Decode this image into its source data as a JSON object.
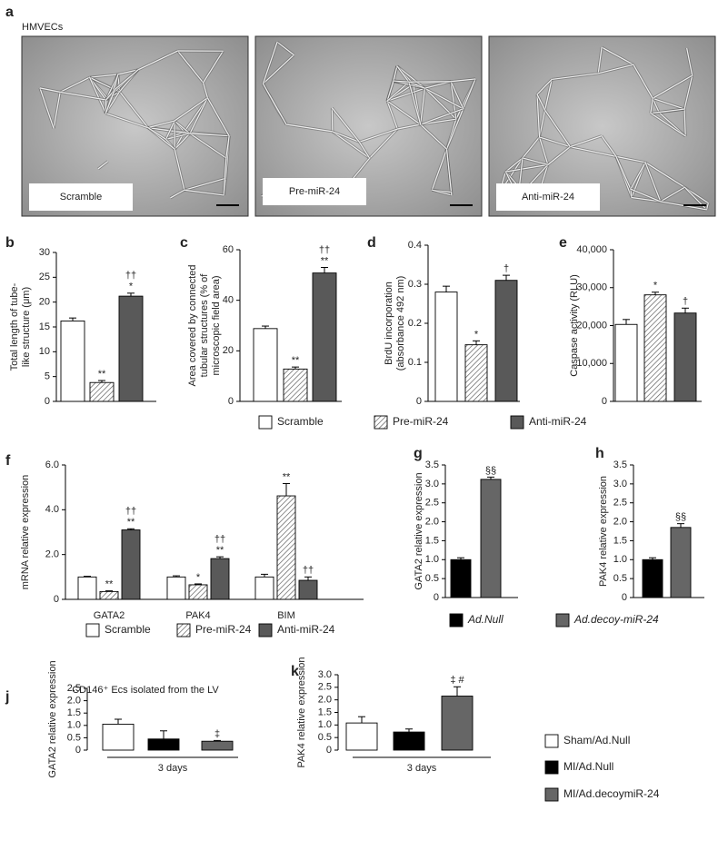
{
  "panel_a": {
    "label": "a",
    "title": "HMVECs",
    "images": [
      {
        "caption": "Scramble"
      },
      {
        "caption": "Pre-miR-24"
      },
      {
        "caption": "Anti-miR-24"
      }
    ]
  },
  "chart_data": [
    {
      "label": "b",
      "type": "bar",
      "ylabel": [
        "Total length of tube-",
        "like structure (μm)"
      ],
      "ylim": [
        0,
        30
      ],
      "yticks": [
        0,
        5,
        10,
        15,
        20,
        25,
        30
      ],
      "values": [
        16.2,
        3.8,
        21.2
      ],
      "errors": [
        0.6,
        0.4,
        0.6
      ],
      "annotations": [
        null,
        [
          "**"
        ],
        [
          "††",
          "*"
        ]
      ],
      "colors": [
        "#ffffff",
        "#ffffff",
        "#595959"
      ],
      "hatch": [
        false,
        true,
        false
      ]
    },
    {
      "label": "c",
      "type": "bar",
      "ylabel": [
        "Area covered by connected",
        "tubular structures (% of",
        "microscopic field area)"
      ],
      "ylim": [
        0,
        60
      ],
      "yticks": [
        0,
        20,
        40,
        60
      ],
      "values": [
        28.8,
        12.8,
        50.8
      ],
      "errors": [
        1.0,
        0.8,
        2.2
      ],
      "annotations": [
        null,
        [
          "**"
        ],
        [
          "††",
          "**"
        ]
      ],
      "colors": [
        "#ffffff",
        "#ffffff",
        "#595959"
      ],
      "hatch": [
        false,
        true,
        false
      ]
    },
    {
      "label": "d",
      "type": "bar",
      "ylabel": [
        "BrdU incorporation",
        "(absorbance 492 nm)"
      ],
      "ylim": [
        0,
        0.4
      ],
      "yticks": [
        0,
        0.1,
        0.2,
        0.3,
        0.4
      ],
      "values": [
        0.28,
        0.145,
        0.31
      ],
      "errors": [
        0.015,
        0.01,
        0.013
      ],
      "annotations": [
        null,
        [
          "*"
        ],
        [
          "†"
        ]
      ],
      "colors": [
        "#ffffff",
        "#ffffff",
        "#595959"
      ],
      "hatch": [
        false,
        true,
        false
      ]
    },
    {
      "label": "e",
      "type": "bar",
      "ylabel": "Caspase activity (RLU)",
      "ylim": [
        0,
        40000
      ],
      "yticks": [
        0,
        {
          "value": 10000,
          "label": "10,000"
        },
        {
          "value": 20000,
          "label": "20,000"
        },
        {
          "value": 30000,
          "label": "30,000"
        },
        {
          "value": 40000,
          "label": "40,000"
        }
      ],
      "values": [
        20300,
        28100,
        23300
      ],
      "errors": [
        1300,
        700,
        1300
      ],
      "annotations": [
        null,
        [
          "*"
        ],
        [
          "†"
        ]
      ],
      "colors": [
        "#ffffff",
        "#ffffff",
        "#595959"
      ],
      "hatch": [
        false,
        true,
        false
      ]
    },
    {
      "label": "f",
      "type": "grouped_bar",
      "ylabel": "mRNA relative expression",
      "ylim": [
        0,
        6
      ],
      "yticks": [
        0,
        {
          "value": 2,
          "label": "2.0"
        },
        {
          "value": 4,
          "label": "4.0"
        },
        {
          "value": 6,
          "label": "6.0"
        }
      ],
      "categories": [
        "GATA2",
        "PAK4",
        "BIM"
      ],
      "series": [
        {
          "name": "Scramble",
          "color": "#ffffff",
          "values": [
            1.0,
            1.0,
            1.0
          ],
          "errors": [
            0.03,
            0.05,
            0.12
          ]
        },
        {
          "name": "Pre-miR-24",
          "color": "#ffffff",
          "hatch": true,
          "values": [
            0.35,
            0.65,
            4.62
          ],
          "errors": [
            0.03,
            0.04,
            0.55
          ],
          "annotations": [
            [
              "**"
            ],
            [
              "*"
            ],
            [
              "**"
            ]
          ]
        },
        {
          "name": "Anti-miR-24",
          "color": "#595959",
          "values": [
            3.1,
            1.82,
            0.85
          ],
          "errors": [
            0.05,
            0.08,
            0.15
          ],
          "annotations": [
            [
              "††",
              "**"
            ],
            [
              "††",
              "**"
            ],
            [
              "††"
            ]
          ]
        }
      ]
    },
    {
      "label": "g",
      "type": "bar",
      "ylabel": "GATA2 relative expression",
      "ylim": [
        0,
        3.5
      ],
      "yticks": [
        0,
        0.5,
        {
          "value": 1,
          "label": "1.0"
        },
        1.5,
        {
          "value": 2,
          "label": "2.0"
        },
        2.5,
        {
          "value": 3,
          "label": "3.0"
        },
        3.5
      ],
      "values": [
        1.0,
        3.12
      ],
      "errors": [
        0.05,
        0.06
      ],
      "annotations": [
        null,
        [
          "§§"
        ]
      ],
      "colors": [
        "#000000",
        "#666666"
      ]
    },
    {
      "label": "h",
      "type": "bar",
      "ylabel": "PAK4 relative expression",
      "ylim": [
        0,
        3.5
      ],
      "yticks": [
        0,
        0.5,
        {
          "value": 1,
          "label": "1.0"
        },
        1.5,
        {
          "value": 2,
          "label": "2.0"
        },
        2.5,
        {
          "value": 3,
          "label": "3.0"
        },
        3.5
      ],
      "values": [
        1.0,
        1.85
      ],
      "errors": [
        0.05,
        0.1
      ],
      "annotations": [
        null,
        [
          "§§"
        ]
      ],
      "colors": [
        "#000000",
        "#666666"
      ]
    },
    {
      "label": "j",
      "type": "bar",
      "title": "CD146⁺ Ecs isolated from the LV",
      "ylabel": "GATA2 relative expression",
      "xlabel": "3 days",
      "ylim": [
        0,
        2.5
      ],
      "yticks": [
        0,
        0.5,
        {
          "value": 1,
          "label": "1.0"
        },
        1.5,
        {
          "value": 2,
          "label": "2.0"
        },
        2.5
      ],
      "values": [
        1.05,
        0.45,
        0.36
      ],
      "errors": [
        0.2,
        0.33,
        0.03
      ],
      "annotations": [
        null,
        null,
        [
          "‡"
        ]
      ],
      "colors": [
        "#ffffff",
        "#000000",
        "#666666"
      ]
    },
    {
      "label": "k",
      "type": "bar",
      "ylabel": "PAK4 relative expression",
      "xlabel": "3 days",
      "ylim": [
        0,
        3
      ],
      "yticks": [
        0,
        0.5,
        {
          "value": 1,
          "label": "1.0"
        },
        1.5,
        {
          "value": 2,
          "label": "2.0"
        },
        2.5,
        {
          "value": 3,
          "label": "3.0"
        }
      ],
      "values": [
        1.08,
        0.72,
        2.15
      ],
      "errors": [
        0.25,
        0.12,
        0.37
      ],
      "annotations": [
        null,
        null,
        [
          "‡ #"
        ]
      ],
      "colors": [
        "#ffffff",
        "#000000",
        "#666666"
      ]
    }
  ],
  "legends": [
    {
      "entries": [
        {
          "name": "Scramble",
          "color": "#ffffff"
        },
        {
          "name": "Pre-miR-24",
          "color": "#ffffff",
          "hatch": true
        },
        {
          "name": "Anti-miR-24",
          "color": "#595959"
        }
      ]
    },
    {
      "entries": [
        {
          "name": "Ad.Null",
          "color": "#000000"
        },
        {
          "name": "Ad.decoy-miR-24",
          "color": "#666666"
        }
      ]
    },
    {
      "entries": [
        {
          "name": "Sham/Ad.Null",
          "color": "#ffffff"
        },
        {
          "name": "MI/Ad.Null",
          "color": "#000000"
        },
        {
          "name": "MI/Ad.decoymiR-24",
          "color": "#666666"
        }
      ]
    }
  ]
}
